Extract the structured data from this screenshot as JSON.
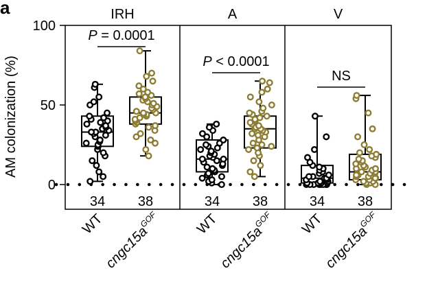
{
  "panel_letter": "a",
  "colors": {
    "wt": "#000000",
    "mutant": "#8c7d33",
    "axis": "#000000"
  },
  "chart_data": {
    "type": "box",
    "ylabel": "AM colonization (%)",
    "ylim": [
      0,
      100
    ],
    "yticks": [
      "0",
      "50",
      "100"
    ],
    "ytick_values": [
      0,
      50,
      100
    ],
    "reference_line": {
      "y": 0,
      "style": "dotted"
    },
    "groups": [
      {
        "label": "WT",
        "italic": false,
        "sup": ""
      },
      {
        "label": "cngc15a",
        "italic": true,
        "sup": "GOF"
      }
    ],
    "panels": [
      {
        "title": "IRH",
        "significance": {
          "text": "P = 0.0001"
        },
        "boxes": [
          {
            "group": "WT",
            "n": "34",
            "min": 2,
            "q1": 24,
            "median": 33,
            "q3": 43,
            "max": 63,
            "points": [
              2,
              5,
              8,
              12,
              15,
              18,
              20,
              22,
              24,
              25,
              26,
              27,
              28,
              30,
              31,
              32,
              33,
              33,
              34,
              35,
              36,
              37,
              38,
              39,
              40,
              41,
              42,
              43,
              45,
              50,
              52,
              55,
              61,
              63
            ]
          },
          {
            "group": "cngc15a",
            "n": "38",
            "min": 18,
            "q1": 38,
            "median": 45,
            "q3": 55,
            "max": 84,
            "points": [
              18,
              22,
              26,
              28,
              30,
              32,
              34,
              36,
              37,
              38,
              39,
              40,
              41,
              42,
              43,
              44,
              44,
              45,
              45,
              46,
              47,
              48,
              49,
              50,
              51,
              52,
              53,
              54,
              55,
              56,
              57,
              58,
              60,
              62,
              65,
              68,
              70,
              84
            ]
          }
        ]
      },
      {
        "title": "A",
        "significance": {
          "text": "P < 0.0001"
        },
        "boxes": [
          {
            "group": "WT",
            "n": "34",
            "min": 0,
            "q1": 8,
            "median": 16,
            "q3": 28,
            "max": 38,
            "points": [
              0,
              1,
              2,
              3,
              4,
              5,
              6,
              7,
              8,
              9,
              10,
              11,
              12,
              13,
              14,
              15,
              16,
              16,
              17,
              18,
              19,
              20,
              21,
              22,
              23,
              24,
              25,
              26,
              28,
              30,
              32,
              34,
              36,
              38
            ]
          },
          {
            "group": "cngc15a",
            "n": "38",
            "min": 5,
            "q1": 23,
            "median": 35,
            "q3": 43,
            "max": 65,
            "points": [
              5,
              8,
              12,
              15,
              18,
              20,
              22,
              23,
              24,
              25,
              26,
              28,
              30,
              31,
              32,
              33,
              34,
              35,
              35,
              36,
              37,
              38,
              39,
              40,
              41,
              42,
              43,
              44,
              45,
              46,
              48,
              50,
              52,
              55,
              58,
              60,
              64,
              65
            ]
          }
        ]
      },
      {
        "title": "V",
        "significance": {
          "text": "NS"
        },
        "boxes": [
          {
            "group": "WT",
            "n": "34",
            "min": 0,
            "q1": 1,
            "median": 4,
            "q3": 12,
            "max": 43,
            "points": [
              0,
              0,
              0,
              0,
              0,
              0,
              0,
              0,
              1,
              1,
              1,
              1,
              1,
              2,
              2,
              2,
              3,
              3,
              4,
              4,
              5,
              5,
              6,
              7,
              8,
              9,
              10,
              11,
              12,
              14,
              17,
              22,
              30,
              43
            ]
          },
          {
            "group": "cngc15a",
            "n": "38",
            "min": 0,
            "q1": 3,
            "median": 8,
            "q3": 19,
            "max": 56,
            "points": [
              0,
              0,
              1,
              1,
              2,
              2,
              3,
              3,
              4,
              4,
              5,
              5,
              6,
              6,
              7,
              7,
              8,
              8,
              9,
              10,
              10,
              11,
              12,
              13,
              14,
              15,
              16,
              17,
              18,
              19,
              20,
              22,
              25,
              30,
              35,
              45,
              54,
              56
            ]
          }
        ]
      }
    ]
  }
}
